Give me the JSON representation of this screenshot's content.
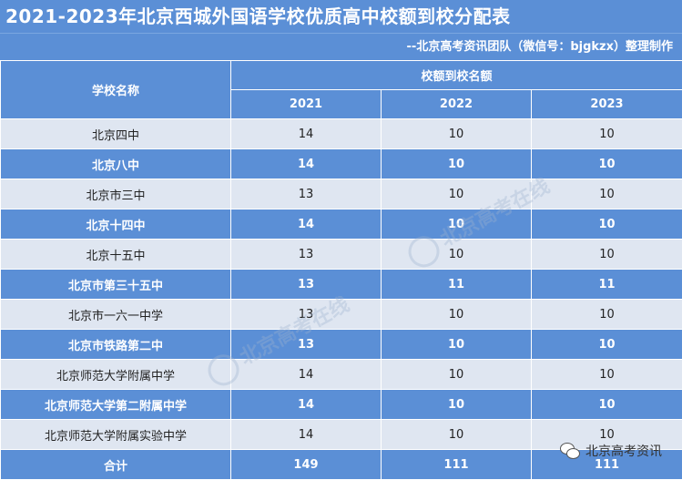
{
  "header": {
    "title": "2021-2023年北京西城外国语学校优质高中校额到校分配表",
    "credit": "--北京高考资讯团队（微信号：bjgkzx）整理制作"
  },
  "table": {
    "school_header": "学校名称",
    "quota_header": "校额到校名额",
    "years": [
      "2021",
      "2022",
      "2023"
    ],
    "rows": [
      {
        "school": "北京四中",
        "v2021": "14",
        "v2022": "10",
        "v2023": "10",
        "style": "light"
      },
      {
        "school": "北京八中",
        "v2021": "14",
        "v2022": "10",
        "v2023": "10",
        "style": "dark"
      },
      {
        "school": "北京市三中",
        "v2021": "13",
        "v2022": "10",
        "v2023": "10",
        "style": "light"
      },
      {
        "school": "北京十四中",
        "v2021": "14",
        "v2022": "10",
        "v2023": "10",
        "style": "dark"
      },
      {
        "school": "北京十五中",
        "v2021": "13",
        "v2022": "10",
        "v2023": "10",
        "style": "light"
      },
      {
        "school": "北京市第三十五中",
        "v2021": "13",
        "v2022": "11",
        "v2023": "11",
        "style": "dark"
      },
      {
        "school": "北京市一六一中学",
        "v2021": "13",
        "v2022": "10",
        "v2023": "10",
        "style": "light"
      },
      {
        "school": "北京市铁路第二中",
        "v2021": "13",
        "v2022": "10",
        "v2023": "10",
        "style": "dark"
      },
      {
        "school": "北京师范大学附属中学",
        "v2021": "14",
        "v2022": "10",
        "v2023": "10",
        "style": "light"
      },
      {
        "school": "北京师范大学第二附属中学",
        "v2021": "14",
        "v2022": "10",
        "v2023": "10",
        "style": "dark"
      },
      {
        "school": "北京师范大学附属实验中学",
        "v2021": "14",
        "v2022": "10",
        "v2023": "10",
        "style": "light"
      }
    ],
    "total": {
      "label": "合计",
      "v2021": "149",
      "v2022": "111",
      "v2023": "111"
    }
  },
  "watermark": {
    "text": "北京高考在线"
  },
  "brand": {
    "name": "北京高考资讯"
  },
  "colors": {
    "header_blue": "#5b8fd6",
    "row_light": "#dfe6f1"
  }
}
